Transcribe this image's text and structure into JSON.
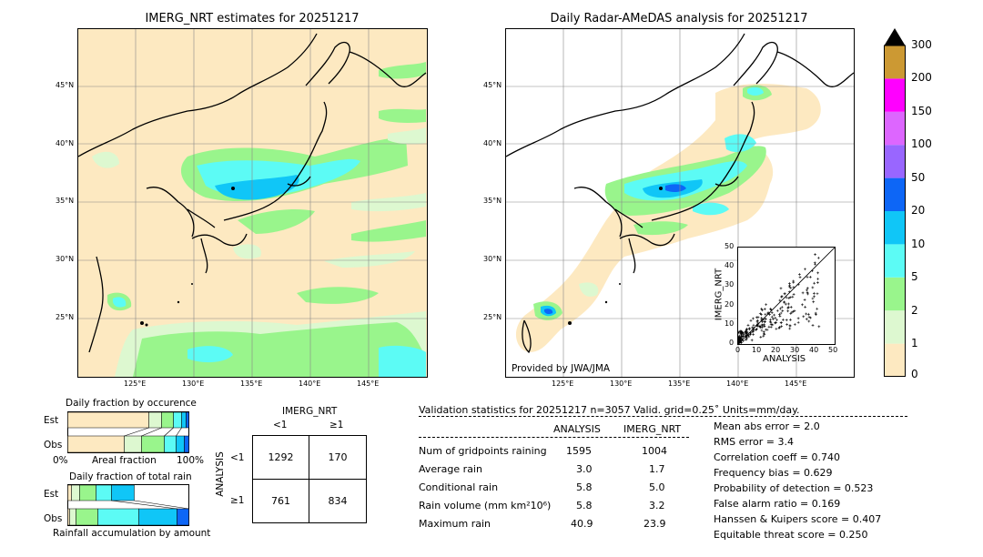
{
  "left_map": {
    "title": "IMERG_NRT estimates for 20251217",
    "lat_labels": [
      "45°N",
      "40°N",
      "35°N",
      "30°N",
      "25°N"
    ],
    "lon_labels": [
      "125°E",
      "130°E",
      "135°E",
      "140°E",
      "145°E"
    ]
  },
  "right_map": {
    "title": "Daily Radar-AMeDAS analysis for 20251217",
    "lat_labels": [
      "45°N",
      "40°N",
      "35°N",
      "30°N",
      "25°N"
    ],
    "lon_labels": [
      "125°E",
      "130°E",
      "135°E",
      "140°E",
      "145°E"
    ],
    "credit": "Provided by JWA/JMA"
  },
  "colorbar": {
    "labels": [
      "0",
      "1",
      "2",
      "5",
      "10",
      "20",
      "50",
      "100",
      "150",
      "200",
      "300"
    ],
    "colors": [
      "#fde9c1",
      "#ddf8d0",
      "#99f58c",
      "#5cfbf5",
      "#10c6f7",
      "#0d66f6",
      "#9966ff",
      "#dd66ff",
      "#ff00ff",
      "#cc9933"
    ],
    "over_color": "#000000"
  },
  "scatter": {
    "xlabel": "ANALYSIS",
    "ylabel": "IMERG_NRT",
    "ticks": [
      "0",
      "10",
      "20",
      "30",
      "40",
      "50"
    ]
  },
  "occurrence": {
    "title": "Daily fraction by occurence",
    "rows": [
      "Est",
      "Obs"
    ],
    "xlabel_left": "0%",
    "xlabel_mid": "Areal fraction",
    "xlabel_right": "100%"
  },
  "amount": {
    "title": "Daily fraction of total rain",
    "rows": [
      "Est",
      "Obs"
    ],
    "xlabel": "Rainfall accumulation by amount"
  },
  "contingency": {
    "title": "IMERG_NRT",
    "col_labels": [
      "<1",
      "≥1"
    ],
    "row_axis": "ANALYSIS",
    "row_labels": [
      "<1",
      "≥1"
    ],
    "cells": [
      [
        "1292",
        "170"
      ],
      [
        "761",
        "834"
      ]
    ]
  },
  "validation": {
    "header": "Validation statistics for 20251217  n=3057 Valid. grid=0.25˚ Units=mm/day.",
    "col_analysis": "ANALYSIS",
    "col_imerg": "IMERG_NRT",
    "rows": [
      {
        "label": "Num of gridpoints raining",
        "analysis": "1595",
        "imerg": "1004"
      },
      {
        "label": "Average rain",
        "analysis": "3.0",
        "imerg": "1.7"
      },
      {
        "label": "Conditional rain",
        "analysis": "5.8",
        "imerg": "5.0"
      },
      {
        "label": "Rain volume (mm km²10⁶)",
        "analysis": "5.8",
        "imerg": "3.2"
      },
      {
        "label": "Maximum rain",
        "analysis": "40.9",
        "imerg": "23.9"
      }
    ],
    "scores": [
      "Mean abs error =    2.0",
      "RMS error =    3.4",
      "Correlation coeff =  0.740",
      "Frequency bias =  0.629",
      "Probability of detection =  0.523",
      "False alarm ratio =  0.169",
      "Hanssen & Kuipers score =  0.407",
      "Equitable threat score =  0.250"
    ]
  }
}
